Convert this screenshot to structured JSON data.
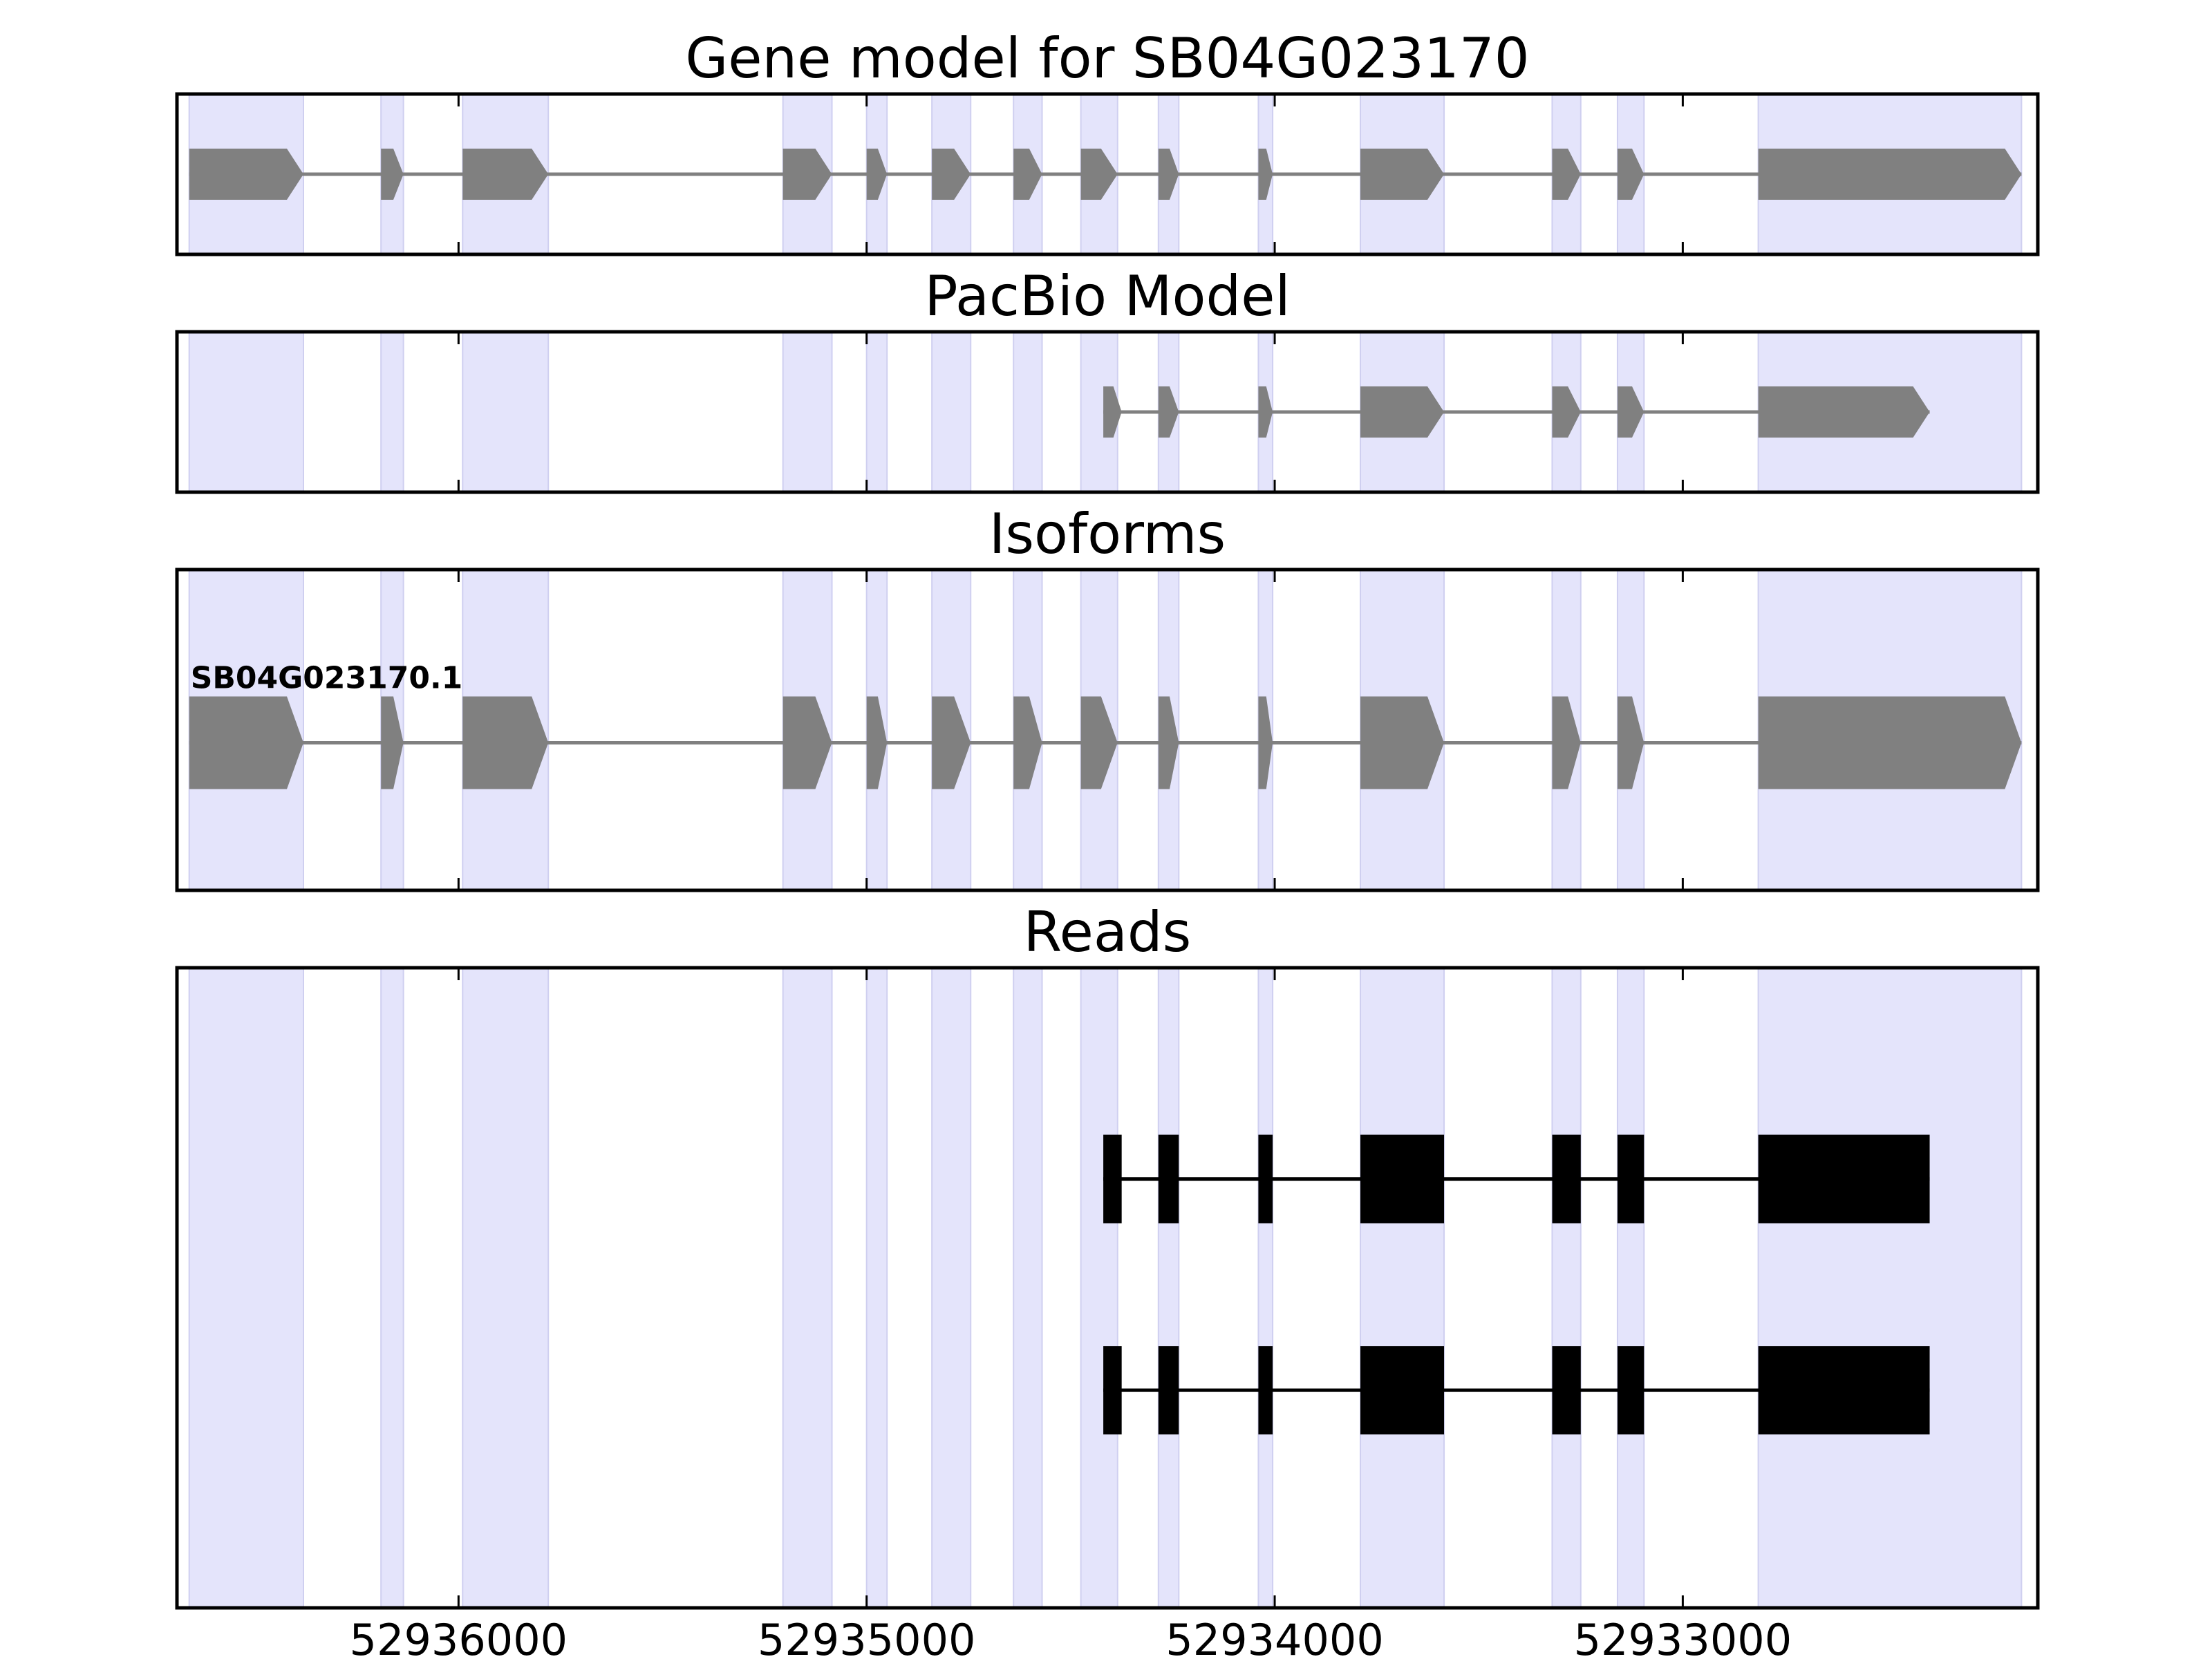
{
  "chart_data": {
    "type": "gene-track",
    "x_direction": "reversed",
    "xlim": [
      52936690,
      52932130
    ],
    "x_ticks": [
      {
        "value": 52936000,
        "label": "52936000"
      },
      {
        "value": 52935000,
        "label": "52935000"
      },
      {
        "value": 52934000,
        "label": "52934000"
      },
      {
        "value": 52933000,
        "label": "52933000"
      }
    ],
    "highlight_color": "#e4e4fb",
    "exon_color": "#808080",
    "read_color": "#000000",
    "exon_regions": [
      [
        52936660,
        52936380
      ],
      [
        52936190,
        52936135
      ],
      [
        52935990,
        52935780
      ],
      [
        52935205,
        52935085
      ],
      [
        52935000,
        52934950
      ],
      [
        52934840,
        52934745
      ],
      [
        52934640,
        52934570
      ],
      [
        52934475,
        52934385
      ],
      [
        52934285,
        52934235
      ],
      [
        52934040,
        52934005
      ],
      [
        52933790,
        52933585
      ],
      [
        52933320,
        52933250
      ],
      [
        52933160,
        52933095
      ],
      [
        52932815,
        52932170
      ]
    ],
    "panels": [
      {
        "title": "Gene model for SB04G023170",
        "kind": "gene_model",
        "tracks": [
          {
            "label": "",
            "exons": [
              [
                52936660,
                52936380
              ],
              [
                52936190,
                52936135
              ],
              [
                52935990,
                52935780
              ],
              [
                52935205,
                52935085
              ],
              [
                52935000,
                52934950
              ],
              [
                52934840,
                52934745
              ],
              [
                52934640,
                52934570
              ],
              [
                52934475,
                52934385
              ],
              [
                52934285,
                52934235
              ],
              [
                52934040,
                52934005
              ],
              [
                52933790,
                52933585
              ],
              [
                52933320,
                52933250
              ],
              [
                52933160,
                52933095
              ],
              [
                52932815,
                52932170
              ]
            ]
          }
        ]
      },
      {
        "title": "PacBio Model",
        "kind": "gene_model",
        "tracks": [
          {
            "label": "",
            "exons": [
              [
                52934420,
                52934375
              ],
              [
                52934285,
                52934235
              ],
              [
                52934040,
                52934005
              ],
              [
                52933790,
                52933585
              ],
              [
                52933320,
                52933250
              ],
              [
                52933160,
                52933095
              ],
              [
                52932815,
                52932395
              ]
            ]
          }
        ]
      },
      {
        "title": "Isoforms",
        "kind": "isoform",
        "tracks": [
          {
            "label": "SB04G023170.1",
            "exons": [
              [
                52936660,
                52936380
              ],
              [
                52936190,
                52936135
              ],
              [
                52935990,
                52935780
              ],
              [
                52935205,
                52935085
              ],
              [
                52935000,
                52934950
              ],
              [
                52934840,
                52934745
              ],
              [
                52934640,
                52934570
              ],
              [
                52934475,
                52934385
              ],
              [
                52934285,
                52934235
              ],
              [
                52934040,
                52934005
              ],
              [
                52933790,
                52933585
              ],
              [
                52933320,
                52933250
              ],
              [
                52933160,
                52933095
              ],
              [
                52932815,
                52932170
              ]
            ]
          }
        ]
      },
      {
        "title": "Reads",
        "kind": "reads",
        "tracks": [
          {
            "label": "",
            "exons": [
              [
                52934420,
                52934375
              ],
              [
                52934285,
                52934235
              ],
              [
                52934040,
                52934005
              ],
              [
                52933790,
                52933585
              ],
              [
                52933320,
                52933250
              ],
              [
                52933160,
                52933095
              ],
              [
                52932815,
                52932395
              ]
            ]
          },
          {
            "label": "",
            "exons": [
              [
                52934420,
                52934375
              ],
              [
                52934285,
                52934235
              ],
              [
                52934040,
                52934005
              ],
              [
                52933790,
                52933585
              ],
              [
                52933320,
                52933250
              ],
              [
                52933160,
                52933095
              ],
              [
                52932815,
                52932395
              ]
            ]
          }
        ]
      }
    ]
  }
}
